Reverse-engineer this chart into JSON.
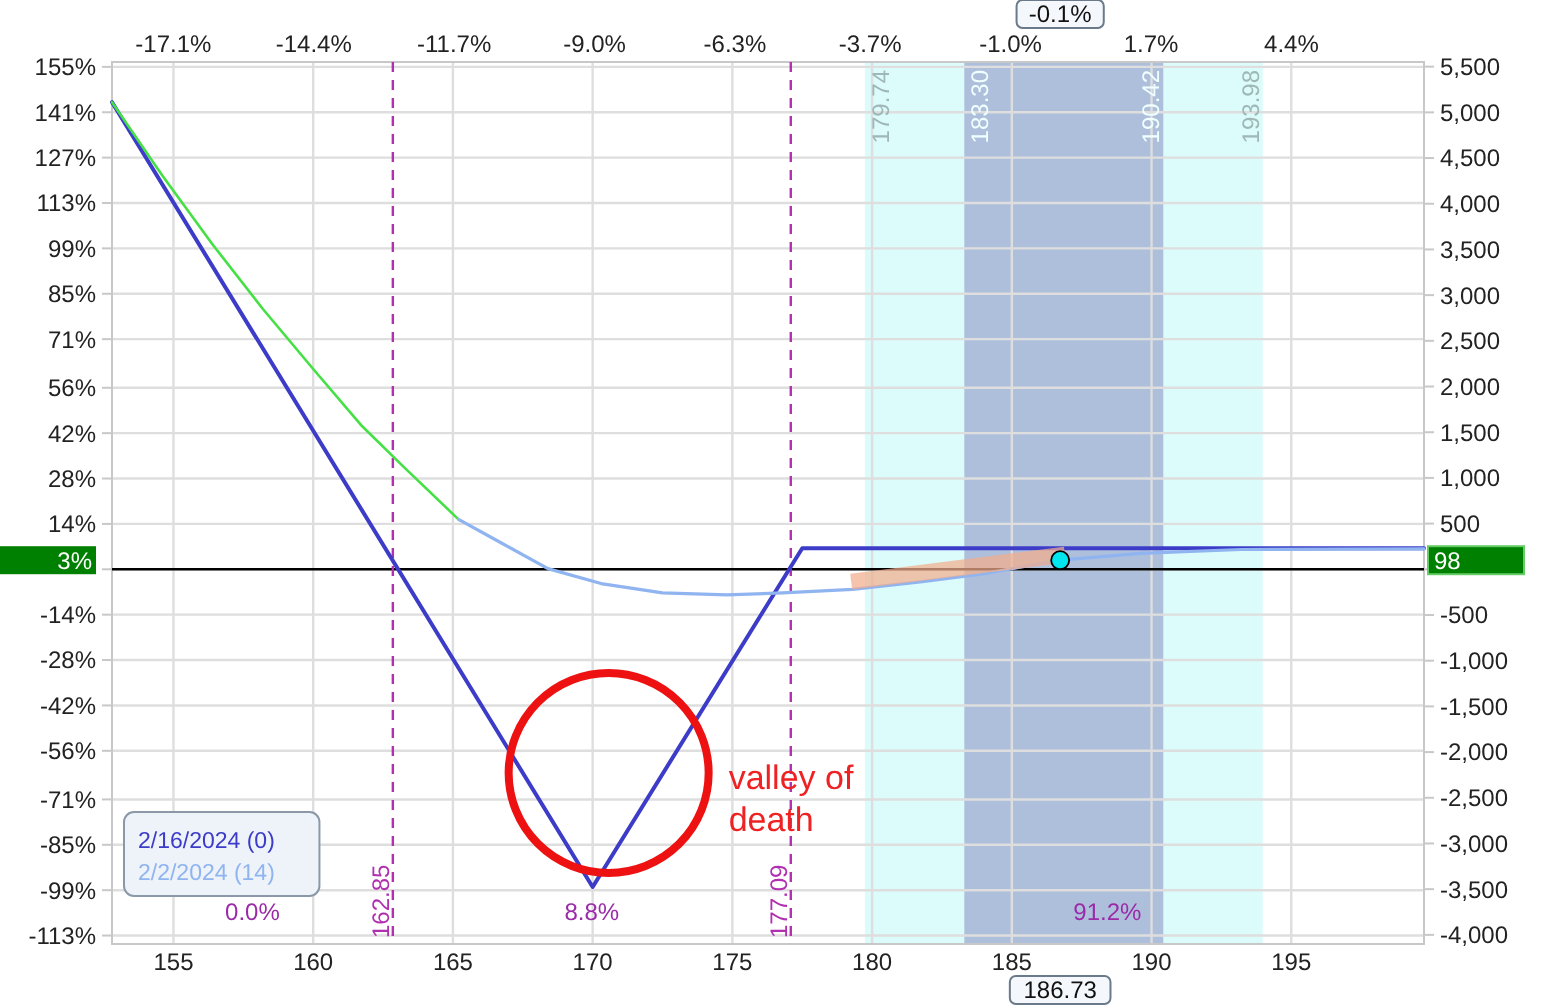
{
  "chart_data": {
    "type": "line",
    "series": [
      {
        "name": "2/16/2024 (0)",
        "color": "#3c3cc8",
        "x": [
          152.8,
          170,
          177.5,
          199.75
        ],
        "values": [
          144.1,
          -98,
          6.5,
          6.5
        ]
      },
      {
        "color": "#44e044",
        "x": [
          152.8,
          154.6,
          156.4,
          158.2,
          160,
          161.7,
          163.2,
          165.2
        ],
        "values": [
          144.1,
          121.5,
          100.2,
          80.3,
          61.8,
          44.6,
          31.9,
          15.4
        ]
      },
      {
        "name": "2/2/2024 (14)",
        "color": "#8fb4f0",
        "x": [
          165.2,
          166.8,
          168.4,
          170.3,
          172.5,
          174.8,
          176.8,
          179.3,
          181.8,
          183.9,
          186.73,
          189.6,
          193.2,
          199.75
        ],
        "values": [
          15.4,
          7.8,
          0.2,
          -4.4,
          -7.3,
          -7.9,
          -7.3,
          -6.2,
          -3.8,
          -1.5,
          2.8,
          4.9,
          6.1,
          6.3
        ]
      },
      {
        "color": "#f2ad8c",
        "x": [
          179.25,
          186.9
        ],
        "values": [
          -3.8,
          4.5
        ]
      },
      {
        "type": "scatter",
        "color": "#00e5ee",
        "marker": "circle",
        "x": [
          186.73
        ],
        "values": [
          2.8
        ]
      }
    ],
    "xlim": [
      152.8,
      199.75
    ],
    "xticks": [
      155,
      160,
      165,
      170,
      175,
      180,
      185,
      190,
      195
    ],
    "x2lim": [
      -18.28,
      6.95
    ],
    "x2ticks": [
      {
        "value": -17.1,
        "label": "-17.1%"
      },
      {
        "value": -14.4,
        "label": "-14.4%"
      },
      {
        "value": -11.7,
        "label": "-11.7%"
      },
      {
        "value": -9.0,
        "label": "-9.0%"
      },
      {
        "value": -6.3,
        "label": "-6.3%"
      },
      {
        "value": -3.7,
        "label": "-3.7%"
      },
      {
        "value": -1.0,
        "label": "-1.0%"
      },
      {
        "value": 1.7,
        "label": "1.7%"
      },
      {
        "value": 4.4,
        "label": "4.4%"
      }
    ],
    "ylim": [
      -115.6,
      156.5
    ],
    "yticks": [
      {
        "value": 155,
        "label": "155%"
      },
      {
        "value": 141,
        "label": "141%"
      },
      {
        "value": 127,
        "label": "127%"
      },
      {
        "value": 113,
        "label": "113%"
      },
      {
        "value": 99,
        "label": "99%"
      },
      {
        "value": 85,
        "label": "85%"
      },
      {
        "value": 71,
        "label": "71%"
      },
      {
        "value": 56,
        "label": "56%"
      },
      {
        "value": 42,
        "label": "42%"
      },
      {
        "value": 28,
        "label": "28%"
      },
      {
        "value": 14,
        "label": "14%"
      },
      {
        "value": 0,
        "label": null
      },
      {
        "value": -14,
        "label": "-14%"
      },
      {
        "value": -28,
        "label": "-28%"
      },
      {
        "value": -42,
        "label": "-42%"
      },
      {
        "value": -56,
        "label": "-56%"
      },
      {
        "value": -71,
        "label": "-71%"
      },
      {
        "value": -85,
        "label": "-85%"
      },
      {
        "value": -99,
        "label": "-99%"
      },
      {
        "value": -113,
        "label": "-113%"
      }
    ],
    "y2lim": [
      -4100,
      5551
    ],
    "y2ticks": [
      {
        "value": 5500,
        "label": "5,500"
      },
      {
        "value": 5000,
        "label": "5,000"
      },
      {
        "value": 4500,
        "label": "4,500"
      },
      {
        "value": 4000,
        "label": "4,000"
      },
      {
        "value": 3500,
        "label": "3,500"
      },
      {
        "value": 3000,
        "label": "3,000"
      },
      {
        "value": 2500,
        "label": "2,500"
      },
      {
        "value": 2000,
        "label": "2,000"
      },
      {
        "value": 1500,
        "label": "1,500"
      },
      {
        "value": 1000,
        "label": "1,000"
      },
      500,
      {
        "value": 0,
        "label": null
      },
      -500,
      {
        "value": -1000,
        "label": "-1,000"
      },
      {
        "value": -1500,
        "label": "-1,500"
      },
      {
        "value": -2000,
        "label": "-2,000"
      },
      {
        "value": -2500,
        "label": "-2,500"
      },
      {
        "value": -3000,
        "label": "-3,000"
      },
      {
        "value": -3500,
        "label": "-3,500"
      },
      {
        "value": -4000,
        "label": "-4,000"
      }
    ],
    "grid": true,
    "legend": "bottom left",
    "ref_lines": [
      {
        "axis": "y",
        "value": 0,
        "color": "#000000"
      },
      {
        "axis": "x",
        "value": 162.85,
        "label": "162.85",
        "color": "#b030b0",
        "line_style": "dashed"
      },
      {
        "axis": "x",
        "value": 177.09,
        "label": "177.09",
        "color": "#b030b0",
        "line_style": "dashed"
      }
    ],
    "bands": [
      {
        "axis": "x",
        "from": 179.74,
        "to": 193.98,
        "color": "#dcfcfc"
      },
      {
        "axis": "x",
        "from": 183.3,
        "to": 190.42,
        "color": "#aebfdc"
      }
    ],
    "annotations": [
      "186.73",
      "-0.1%",
      "3%",
      "98",
      {
        "text": "179.74",
        "x": 179.74
      },
      {
        "text": "183.30",
        "x": 183.3
      },
      {
        "text": "190.42",
        "x": 190.42
      },
      {
        "text": "193.98",
        "x": 193.98
      },
      "0.0%",
      "8.8%",
      "91.2%",
      "valley of death"
    ]
  }
}
